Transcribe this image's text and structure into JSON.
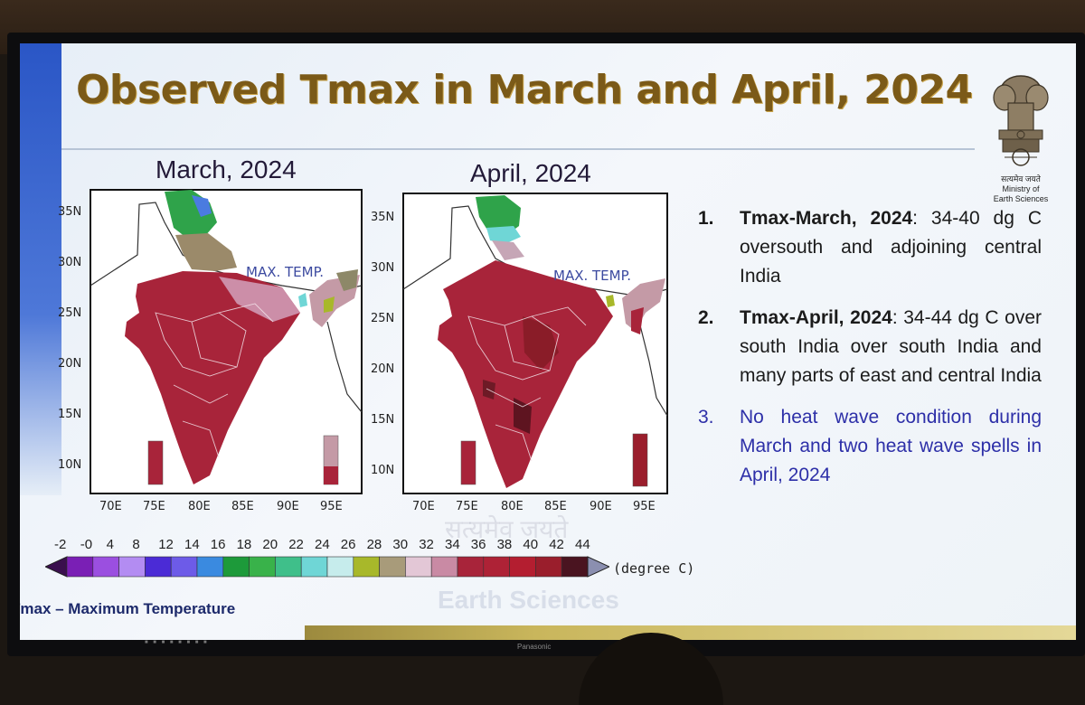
{
  "slide": {
    "title": "Observed Tmax in March and April, 2024",
    "footnote": "Tmax – Maximum Temperature",
    "emblem": {
      "motto": "सत्यमेव जयते",
      "ministry_line1": "Ministry of",
      "ministry_line2": "Earth Sciences"
    },
    "watermark": {
      "line1": "सत्यमेव जयते",
      "line2": "Earth Sciences"
    },
    "tv_brand": "Panasonic"
  },
  "maps": [
    {
      "title": "March,  2024",
      "label": "MAX. TEMP."
    },
    {
      "title": "April, 2024",
      "label": "MAX. TEMP."
    }
  ],
  "axes": {
    "lat_ticks": [
      "35N",
      "30N",
      "25N",
      "20N",
      "15N",
      "10N"
    ],
    "lon_ticks": [
      "70E",
      "75E",
      "80E",
      "85E",
      "90E",
      "95E"
    ]
  },
  "colorbar": {
    "ticks": [
      "-2",
      "-0",
      "4",
      "8",
      "12",
      "14",
      "16",
      "18",
      "20",
      "22",
      "24",
      "26",
      "28",
      "30",
      "32",
      "34",
      "36",
      "38",
      "40",
      "42",
      "44"
    ],
    "colors": [
      "#7a1fb5",
      "#9b4fe0",
      "#b38cf2",
      "#4b2bd6",
      "#6d5be8",
      "#3a8ae0",
      "#1d9a3a",
      "#39b24a",
      "#3fbf8a",
      "#6fd6d6",
      "#c6ecec",
      "#a8b82a",
      "#a89b7a",
      "#e3c7d6",
      "#c98aa4",
      "#a8243a",
      "#ae2236",
      "#b41e30",
      "#9a1e2c",
      "#4a1420"
    ],
    "unit": "(degree C)"
  },
  "points": [
    {
      "num": "1.",
      "bold": "Tmax-March, 2024",
      "text": ": 34-40 dg C oversouth and adjoining central India",
      "style": "normal"
    },
    {
      "num": "2.",
      "bold": "Tmax-April, 2024",
      "text": ": 34-44 dg C over south India  over south India and many parts of east and central India",
      "style": "normal"
    },
    {
      "num": "3.",
      "bold": "",
      "text": "No heat wave condition  during March and two heat wave spells in April, 2024",
      "style": "blue"
    }
  ]
}
